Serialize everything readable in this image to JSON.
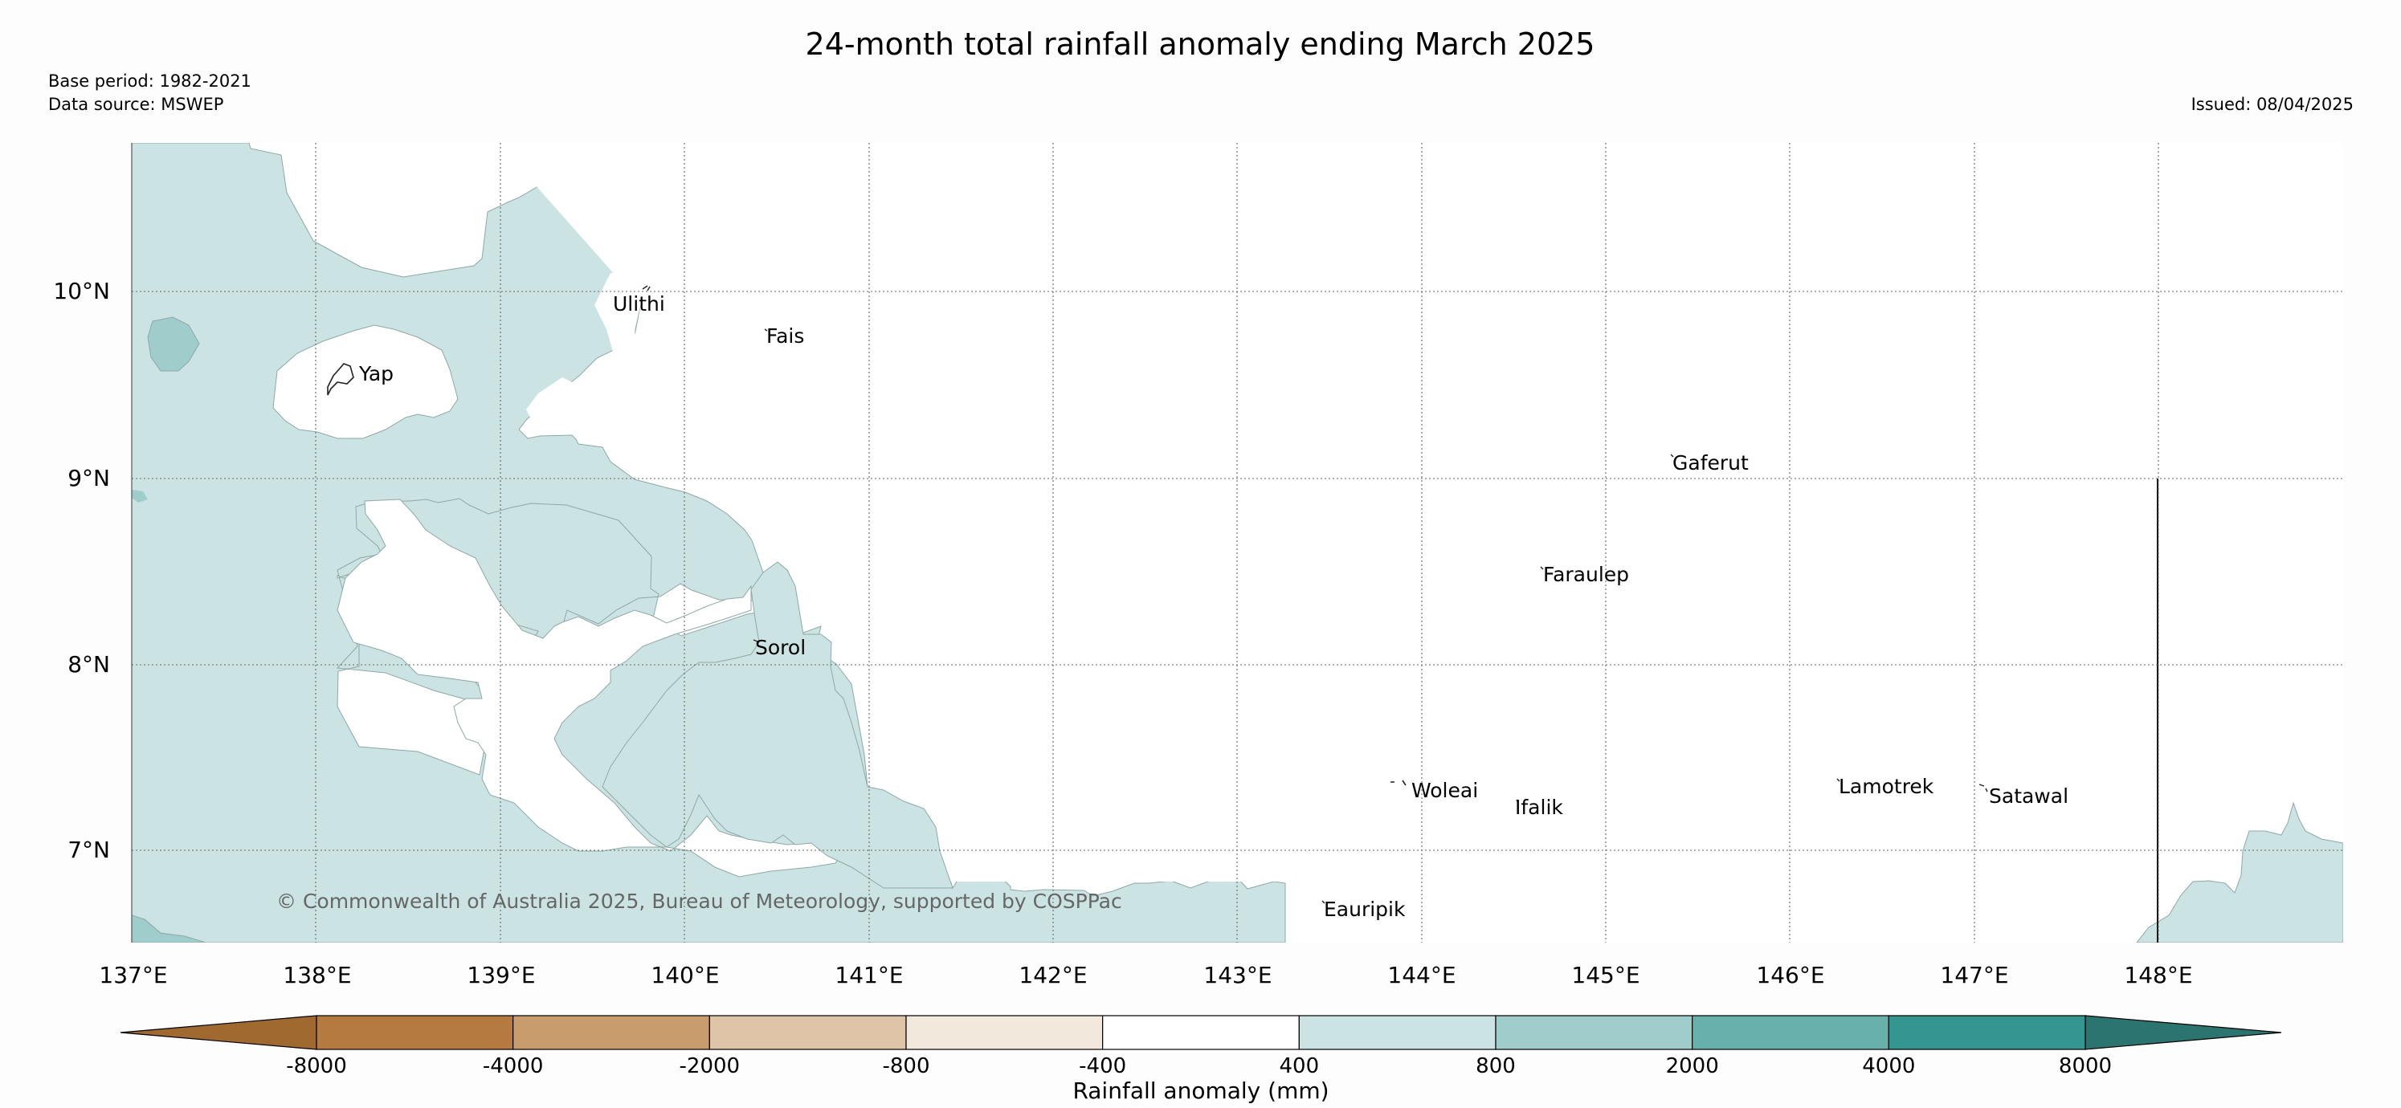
{
  "title": "24-month total rainfall anomaly ending March 2025",
  "base_period": "Base period: 1982-2021",
  "data_source": "Data source: MSWEP",
  "issued": "Issued: 08/04/2025",
  "copyright": "© Commonwealth of Australia 2025, Bureau of Meteorology, supported by COSPPac",
  "lat_ticks": [
    "10°N",
    "9°N",
    "8°N",
    "7°N"
  ],
  "lon_ticks": [
    "137°E",
    "138°E",
    "139°E",
    "140°E",
    "141°E",
    "142°E",
    "143°E",
    "144°E",
    "145°E",
    "146°E",
    "147°E",
    "148°E"
  ],
  "places": [
    "Ulithi",
    "Fais",
    "Yap",
    "Gaferut",
    "Faraulep",
    "Sorol",
    "Woleai",
    "Ifalik",
    "Lamotrek",
    "Satawal",
    "Eauripik"
  ],
  "colorbar": {
    "label": "Rainfall anomaly (mm)",
    "tick_labels": [
      "-8000",
      "-4000",
      "-2000",
      "-800",
      "-400",
      "400",
      "800",
      "2000",
      "4000",
      "8000"
    ],
    "colors": [
      "#a0692f",
      "#b57a40",
      "#c99c6e",
      "#dfc4a8",
      "#f2e8dc",
      "#ffffff",
      "#cbe4e3",
      "#9ecdcb",
      "#67b0ac",
      "#35958f",
      "#2b7470"
    ]
  },
  "colors": {
    "land_fill": "#cbe4e3",
    "dark_fill": "#9ecdcb",
    "ocean": "#ffffff"
  }
}
